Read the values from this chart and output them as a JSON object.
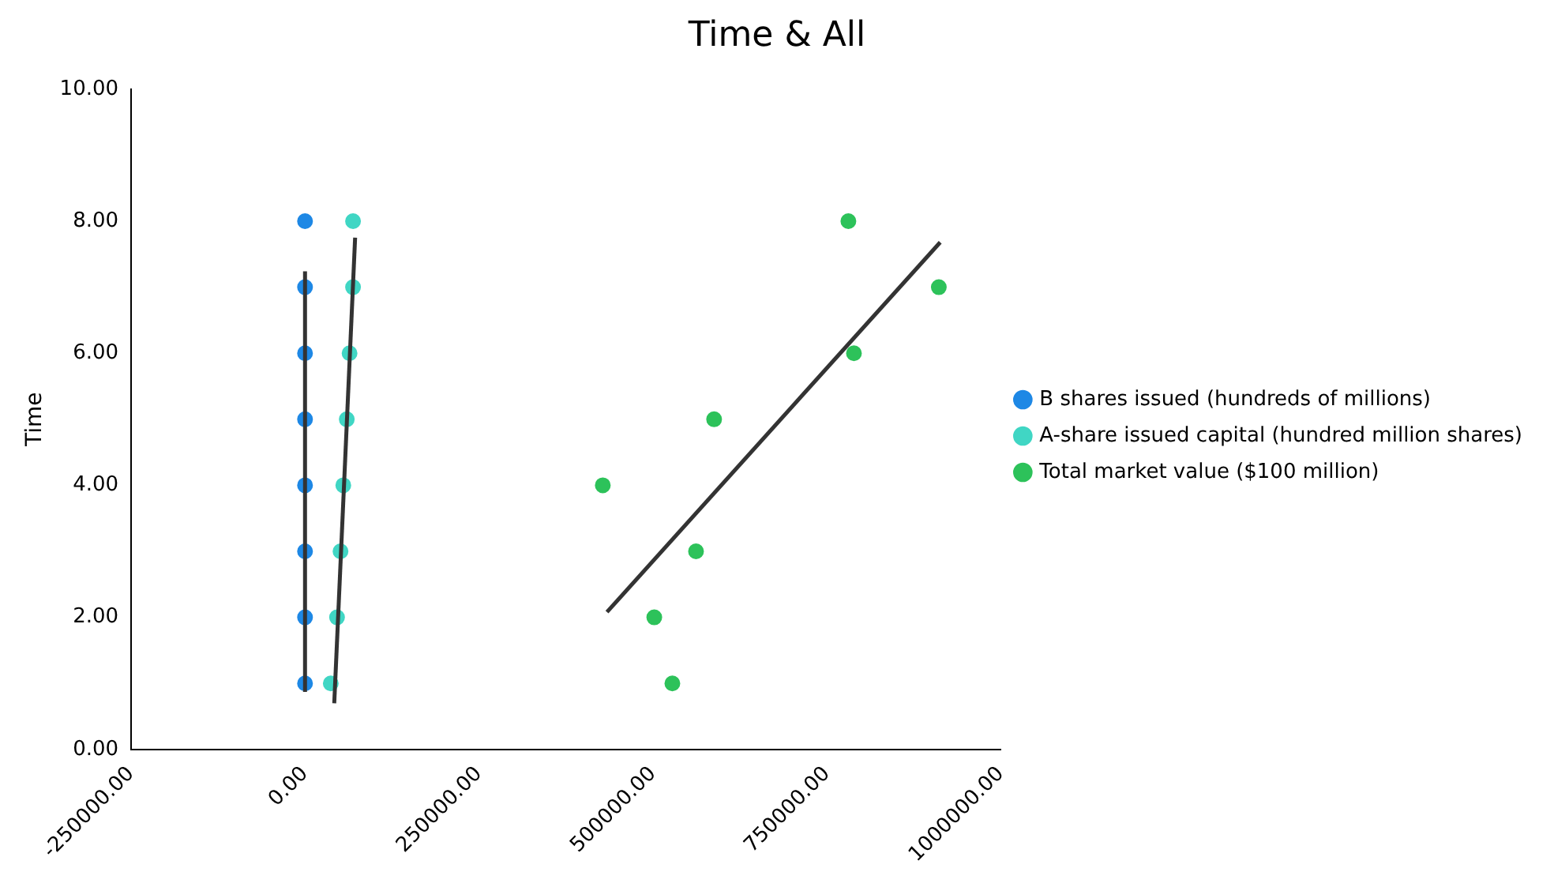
{
  "chart_data": {
    "type": "scatter",
    "title": "Time & All",
    "ylabel": "Time",
    "legend": "right",
    "grid": false,
    "marker": "circle",
    "xlim": [
      -250000,
      1000000
    ],
    "xticks": [
      {
        "value": -250000,
        "label": "-250000.00"
      },
      {
        "value": 0,
        "label": "0.00"
      },
      {
        "value": 250000,
        "label": "250000.00"
      },
      {
        "value": 500000,
        "label": "500000.00"
      },
      {
        "value": 750000,
        "label": "750000.00"
      },
      {
        "value": 1000000,
        "label": "1000000.00"
      }
    ],
    "ylim": [
      0,
      10
    ],
    "yticks": [
      {
        "value": 0,
        "label": "0.00"
      },
      {
        "value": 2,
        "label": "2.00"
      },
      {
        "value": 4,
        "label": "4.00"
      },
      {
        "value": 6,
        "label": "6.00"
      },
      {
        "value": 8,
        "label": "8.00"
      },
      {
        "value": 10,
        "label": "10.00"
      }
    ],
    "series": [
      {
        "name": "B shares issued (hundreds of millions)",
        "color": "#1e88e5",
        "x": [
          0,
          0,
          0,
          0,
          0,
          0,
          0,
          0
        ],
        "values": [
          1,
          2,
          3,
          4,
          5,
          6,
          7,
          8
        ]
      },
      {
        "name": "A-share issued capital (hundred million shares)",
        "color": "#40d6c4",
        "x": [
          37000,
          46000,
          51000,
          55000,
          60000,
          64000,
          69000,
          69000
        ],
        "values": [
          1,
          2,
          3,
          4,
          5,
          6,
          7,
          8
        ]
      },
      {
        "name": "Total market value ($100 million)",
        "color": "#2dc25a",
        "x": [
          528000,
          502000,
          562000,
          428000,
          588000,
          789000,
          911000,
          781000
        ],
        "values": [
          1,
          2,
          3,
          4,
          5,
          6,
          7,
          8
        ]
      },
      {
        "type": "line",
        "marker": "none",
        "color": "#333333",
        "x": [
          0,
          0
        ],
        "values": [
          0.87,
          7.24
        ]
      },
      {
        "type": "line",
        "marker": "none",
        "color": "#333333",
        "x": [
          42000,
          72000
        ],
        "values": [
          0.7,
          7.75
        ]
      },
      {
        "type": "line",
        "marker": "none",
        "color": "#333333",
        "x": [
          434000,
          913000
        ],
        "values": [
          2.08,
          7.68
        ]
      }
    ]
  }
}
